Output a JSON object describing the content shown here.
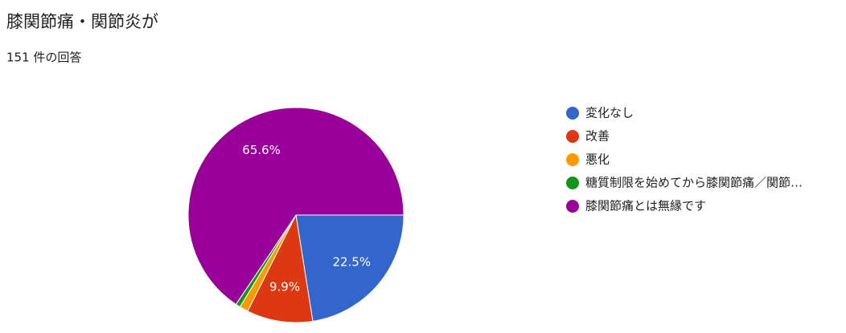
{
  "chart_data": {
    "type": "pie",
    "title": "膝関節痛・関節炎が",
    "subtitle": "151 件の回答",
    "categories": [
      "変化なし",
      "改善",
      "悪化",
      "糖質制限を始めてから膝関節痛／関節…",
      "膝関節痛とは無縁です"
    ],
    "values": [
      22.5,
      9.9,
      1.3,
      0.7,
      65.6
    ],
    "value_labels": [
      "22.5%",
      "9.9%",
      null,
      null,
      "65.6%"
    ],
    "colors": [
      "#3366cc",
      "#dc3912",
      "#ff9900",
      "#109618",
      "#990099"
    ],
    "legend": "right"
  }
}
